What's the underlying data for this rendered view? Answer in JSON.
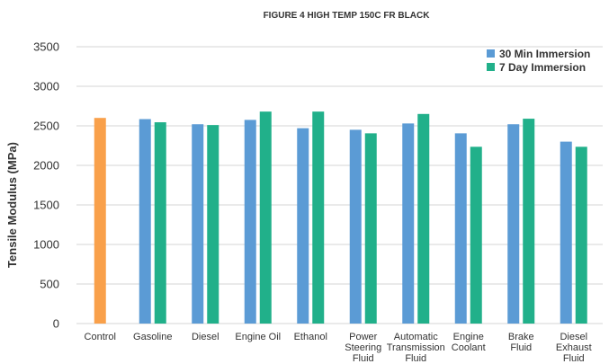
{
  "chart_data": {
    "type": "bar",
    "title": "FIGURE 4 HIGH TEMP 150C FR BLACK",
    "ylabel": "Tensile Modulus (MPa)",
    "xlabel": "",
    "ylim": [
      0,
      3500
    ],
    "yticks": [
      0,
      500,
      1000,
      1500,
      2000,
      2500,
      3000,
      3500
    ],
    "grid": true,
    "legend_position": "top-right",
    "categories": [
      [
        "Control"
      ],
      [
        "Gasoline"
      ],
      [
        "Diesel"
      ],
      [
        "Engine Oil"
      ],
      [
        "Ethanol"
      ],
      [
        "Power",
        "Steering",
        "Fluid"
      ],
      [
        "Automatic",
        "Transmission",
        "Fluid"
      ],
      [
        "Engine",
        "Coolant"
      ],
      [
        "Brake",
        "Fluid"
      ],
      [
        "Diesel",
        "Exhaust",
        "Fluid"
      ]
    ],
    "control": {
      "value": 2600,
      "color": "#F9A04A"
    },
    "series": [
      {
        "name": "30 Min Immersion",
        "color": "#5B9BD5",
        "values": [
          null,
          2585,
          2520,
          2575,
          2470,
          2450,
          2530,
          2405,
          2520,
          2300
        ]
      },
      {
        "name": "7 Day Immersion",
        "color": "#21B08A",
        "values": [
          null,
          2545,
          2510,
          2680,
          2680,
          2405,
          2650,
          2235,
          2590,
          2235
        ]
      }
    ]
  }
}
